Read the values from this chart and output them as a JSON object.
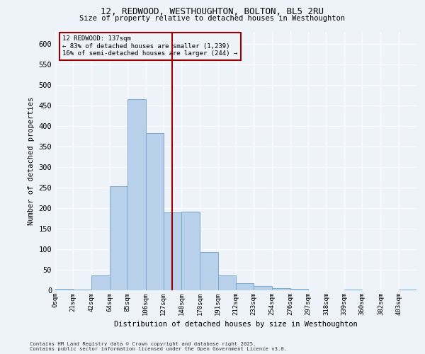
{
  "title_line1": "12, REDWOOD, WESTHOUGHTON, BOLTON, BL5 2RU",
  "title_line2": "Size of property relative to detached houses in Westhoughton",
  "xlabel": "Distribution of detached houses by size in Westhoughton",
  "ylabel": "Number of detached properties",
  "footnote_line1": "Contains HM Land Registry data © Crown copyright and database right 2025.",
  "footnote_line2": "Contains public sector information licensed under the Open Government Licence v3.0.",
  "annotation_title": "12 REDWOOD: 137sqm",
  "annotation_line2": "← 83% of detached houses are smaller (1,239)",
  "annotation_line3": "16% of semi-detached houses are larger (244) →",
  "marker_value": 137,
  "bar_edges": [
    0,
    21,
    42,
    64,
    85,
    106,
    127,
    148,
    170,
    191,
    212,
    233,
    254,
    276,
    297,
    318,
    339,
    360,
    382,
    403,
    424
  ],
  "bar_heights": [
    3,
    2,
    37,
    253,
    466,
    383,
    190,
    191,
    93,
    37,
    18,
    10,
    5,
    3,
    0,
    0,
    2,
    0,
    0,
    1
  ],
  "bar_color": "#b8d0ea",
  "bar_edgecolor": "#7aaad0",
  "marker_line_color": "#990000",
  "annotation_box_color": "#990000",
  "background_color": "#eef2f9",
  "grid_color": "#ffffff",
  "ylim": [
    0,
    630
  ],
  "yticks": [
    0,
    50,
    100,
    150,
    200,
    250,
    300,
    350,
    400,
    450,
    500,
    550,
    600
  ]
}
